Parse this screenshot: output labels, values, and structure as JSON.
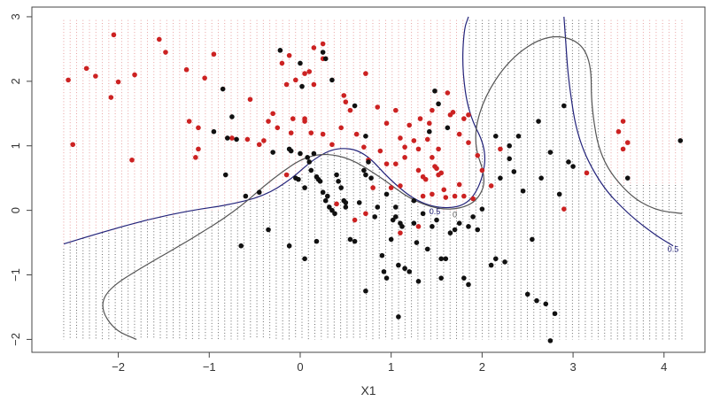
{
  "chart_data": {
    "type": "scatter",
    "title": "",
    "xlabel": "X1",
    "ylabel": "",
    "xlim": [
      -2.95,
      4.45
    ],
    "ylim": [
      -2.2,
      3.15
    ],
    "xticks": [
      "-2",
      "-1",
      "0",
      "1",
      "2",
      "3",
      "4"
    ],
    "yticks": [
      "-2",
      "-1",
      "0",
      "1",
      "2",
      "3"
    ],
    "grid": {
      "x_start": -2.6,
      "x_end": 4.2,
      "x_step": 0.0708,
      "y_min": -2.0,
      "y_max": 2.95,
      "colors": {
        "class_red": "#e8a0a0",
        "class_black": "#6a6a6a"
      }
    },
    "colors": {
      "red_class": "#cc2222",
      "black_class": "#111111",
      "boundary_blue": "#23237a",
      "boundary_gray": "#555555"
    },
    "contour_labels": [
      {
        "text": "0.5",
        "x": 1.48,
        "y": -0.02,
        "color": "#23237a"
      },
      {
        "text": "0",
        "x": 1.7,
        "y": -0.07,
        "color": "#555555"
      },
      {
        "text": "0.5",
        "x": 4.1,
        "y": -0.6,
        "color": "#23237a"
      }
    ],
    "series": [
      {
        "class": "red",
        "color": "#cc2222",
        "points": [
          [
            -2.55,
            2.02
          ],
          [
            -2.5,
            1.02
          ],
          [
            -2.35,
            2.2
          ],
          [
            -2.25,
            2.08
          ],
          [
            -2.05,
            2.72
          ],
          [
            -2.0,
            1.99
          ],
          [
            -2.08,
            1.75
          ],
          [
            -1.85,
            0.78
          ],
          [
            -1.82,
            2.1
          ],
          [
            -1.55,
            2.65
          ],
          [
            -1.48,
            2.45
          ],
          [
            -1.25,
            2.18
          ],
          [
            -1.22,
            1.38
          ],
          [
            -1.15,
            0.82
          ],
          [
            -1.12,
            1.28
          ],
          [
            -1.12,
            0.95
          ],
          [
            -1.05,
            2.05
          ],
          [
            -0.95,
            2.42
          ],
          [
            -0.75,
            1.12
          ],
          [
            -0.58,
            1.1
          ],
          [
            -0.55,
            1.72
          ],
          [
            -0.45,
            1.02
          ],
          [
            -0.4,
            1.08
          ],
          [
            -0.35,
            1.38
          ],
          [
            -0.3,
            1.5
          ],
          [
            -0.25,
            1.28
          ],
          [
            -0.2,
            2.28
          ],
          [
            -0.15,
            1.95
          ],
          [
            -0.12,
            2.4
          ],
          [
            -0.1,
            1.2
          ],
          [
            -0.08,
            1.42
          ],
          [
            -0.05,
            2.02
          ],
          [
            0.05,
            1.42
          ],
          [
            0.05,
            1.38
          ],
          [
            0.05,
            2.12
          ],
          [
            0.1,
            2.15
          ],
          [
            0.12,
            1.2
          ],
          [
            0.15,
            1.95
          ],
          [
            0.15,
            2.52
          ],
          [
            0.25,
            2.58
          ],
          [
            0.25,
            2.35
          ],
          [
            0.25,
            1.18
          ],
          [
            0.35,
            1.02
          ],
          [
            0.45,
            1.28
          ],
          [
            0.48,
            1.78
          ],
          [
            0.5,
            1.68
          ],
          [
            0.55,
            1.55
          ],
          [
            0.62,
            1.18
          ],
          [
            0.7,
            0.98
          ],
          [
            0.72,
            2.12
          ],
          [
            0.85,
            1.6
          ],
          [
            0.88,
            0.92
          ],
          [
            0.95,
            1.35
          ],
          [
            1.05,
            1.55
          ],
          [
            1.1,
            1.12
          ],
          [
            1.15,
            0.98
          ],
          [
            1.2,
            1.32
          ],
          [
            1.25,
            1.08
          ],
          [
            1.3,
            0.95
          ],
          [
            1.32,
            1.42
          ],
          [
            1.35,
            0.52
          ],
          [
            1.38,
            0.48
          ],
          [
            1.4,
            1.1
          ],
          [
            1.45,
            0.82
          ],
          [
            1.48,
            0.68
          ],
          [
            1.5,
            0.65
          ],
          [
            1.52,
            0.55
          ],
          [
            1.55,
            0.58
          ],
          [
            1.58,
            0.32
          ],
          [
            1.62,
            1.82
          ],
          [
            1.65,
            1.48
          ],
          [
            1.68,
            1.52
          ],
          [
            1.75,
            1.18
          ],
          [
            1.75,
            0.4
          ],
          [
            1.8,
            0.22
          ],
          [
            1.85,
            1.05
          ],
          [
            1.9,
            0.18
          ],
          [
            1.95,
            0.85
          ],
          [
            2.0,
            0.62
          ],
          [
            2.1,
            0.38
          ],
          [
            1.8,
            1.42
          ],
          [
            1.85,
            1.48
          ],
          [
            1.42,
            1.35
          ],
          [
            1.45,
            1.55
          ],
          [
            1.52,
            0.95
          ],
          [
            0.95,
            0.72
          ],
          [
            1.05,
            0.72
          ],
          [
            1.0,
            0.35
          ],
          [
            1.1,
            0.38
          ],
          [
            1.35,
            0.22
          ],
          [
            1.45,
            0.25
          ],
          [
            1.6,
            0.2
          ],
          [
            1.7,
            0.22
          ],
          [
            1.1,
            -0.35
          ],
          [
            1.3,
            -0.25
          ],
          [
            0.6,
            -0.15
          ],
          [
            0.4,
            0.1
          ],
          [
            0.75,
            0.78
          ],
          [
            2.2,
            0.95
          ],
          [
            2.9,
            0.02
          ],
          [
            3.15,
            0.58
          ],
          [
            3.5,
            1.22
          ],
          [
            3.55,
            1.38
          ],
          [
            3.55,
            0.95
          ],
          [
            3.6,
            1.05
          ],
          [
            -0.15,
            0.55
          ],
          [
            0.8,
            0.35
          ],
          [
            1.3,
            0.62
          ],
          [
            1.15,
            0.82
          ],
          [
            0.72,
            -0.05
          ]
        ]
      },
      {
        "class": "black",
        "color": "#111111",
        "points": [
          [
            -0.95,
            1.22
          ],
          [
            -0.85,
            1.88
          ],
          [
            -0.8,
            1.12
          ],
          [
            -0.75,
            1.45
          ],
          [
            -0.7,
            1.1
          ],
          [
            -0.6,
            0.22
          ],
          [
            -0.45,
            0.28
          ],
          [
            -0.35,
            -0.3
          ],
          [
            -0.3,
            0.9
          ],
          [
            -0.12,
            0.95
          ],
          [
            -0.1,
            0.92
          ],
          [
            -0.05,
            0.5
          ],
          [
            -0.02,
            0.48
          ],
          [
            0.0,
            0.88
          ],
          [
            0.05,
            0.35
          ],
          [
            0.08,
            0.82
          ],
          [
            0.1,
            0.75
          ],
          [
            0.12,
            0.62
          ],
          [
            0.15,
            0.88
          ],
          [
            0.18,
            0.52
          ],
          [
            0.2,
            0.48
          ],
          [
            0.22,
            0.45
          ],
          [
            0.25,
            0.28
          ],
          [
            0.28,
            0.15
          ],
          [
            0.3,
            0.22
          ],
          [
            0.32,
            0.05
          ],
          [
            0.35,
            0.0
          ],
          [
            0.38,
            -0.05
          ],
          [
            0.4,
            0.55
          ],
          [
            0.42,
            0.45
          ],
          [
            0.45,
            0.35
          ],
          [
            0.48,
            0.15
          ],
          [
            0.5,
            0.05
          ],
          [
            0.55,
            -0.45
          ],
          [
            0.6,
            -0.48
          ],
          [
            0.65,
            0.12
          ],
          [
            0.7,
            0.62
          ],
          [
            0.72,
            0.55
          ],
          [
            0.75,
            0.75
          ],
          [
            0.78,
            0.5
          ],
          [
            0.82,
            -0.1
          ],
          [
            0.85,
            0.05
          ],
          [
            0.9,
            -0.7
          ],
          [
            0.92,
            -0.95
          ],
          [
            0.95,
            -1.05
          ],
          [
            1.0,
            -0.45
          ],
          [
            1.02,
            -0.15
          ],
          [
            1.05,
            0.05
          ],
          [
            1.08,
            -0.85
          ],
          [
            1.1,
            -0.2
          ],
          [
            1.12,
            -0.25
          ],
          [
            1.15,
            -0.9
          ],
          [
            1.2,
            -0.95
          ],
          [
            1.25,
            -0.2
          ],
          [
            1.28,
            -0.5
          ],
          [
            1.3,
            -1.1
          ],
          [
            1.35,
            -0.05
          ],
          [
            1.4,
            -0.6
          ],
          [
            1.45,
            -0.25
          ],
          [
            1.5,
            -0.15
          ],
          [
            1.55,
            -0.75
          ],
          [
            1.6,
            -0.75
          ],
          [
            1.65,
            -0.35
          ],
          [
            1.7,
            -0.3
          ],
          [
            1.75,
            -0.2
          ],
          [
            1.8,
            -1.05
          ],
          [
            1.85,
            -1.15
          ],
          [
            1.9,
            -0.1
          ],
          [
            1.95,
            -0.3
          ],
          [
            2.0,
            0.02
          ],
          [
            2.1,
            -0.85
          ],
          [
            2.15,
            -0.75
          ],
          [
            2.2,
            0.5
          ],
          [
            2.25,
            -0.8
          ],
          [
            2.3,
            0.8
          ],
          [
            2.35,
            0.6
          ],
          [
            2.4,
            1.15
          ],
          [
            2.45,
            0.3
          ],
          [
            2.5,
            -1.3
          ],
          [
            2.55,
            -0.45
          ],
          [
            2.6,
            -1.4
          ],
          [
            2.62,
            1.38
          ],
          [
            2.65,
            0.5
          ],
          [
            2.7,
            -1.45
          ],
          [
            2.75,
            0.9
          ],
          [
            2.8,
            -1.6
          ],
          [
            2.85,
            0.25
          ],
          [
            2.9,
            1.62
          ],
          [
            2.95,
            0.75
          ],
          [
            3.0,
            0.68
          ],
          [
            3.6,
            0.5
          ],
          [
            4.18,
            1.08
          ],
          [
            -0.22,
            2.48
          ],
          [
            0.0,
            2.28
          ],
          [
            0.02,
            1.92
          ],
          [
            0.25,
            2.45
          ],
          [
            0.28,
            2.35
          ],
          [
            0.35,
            2.02
          ],
          [
            0.6,
            1.62
          ],
          [
            0.72,
            1.15
          ],
          [
            1.42,
            1.22
          ],
          [
            1.48,
            1.85
          ],
          [
            1.52,
            1.65
          ],
          [
            1.62,
            1.28
          ],
          [
            2.15,
            1.15
          ],
          [
            2.3,
            1.0
          ],
          [
            -0.82,
            0.55
          ],
          [
            -0.65,
            -0.55
          ],
          [
            -0.12,
            -0.55
          ],
          [
            0.05,
            -0.75
          ],
          [
            0.18,
            -0.48
          ],
          [
            0.72,
            -1.25
          ],
          [
            1.08,
            -1.65
          ],
          [
            2.75,
            -2.02
          ],
          [
            1.55,
            -1.05
          ],
          [
            1.85,
            -0.25
          ],
          [
            0.5,
            0.12
          ],
          [
            0.95,
            0.25
          ],
          [
            1.05,
            -0.1
          ],
          [
            1.25,
            0.15
          ]
        ]
      }
    ],
    "boundaries": [
      {
        "name": "",
        "color": "#23237a",
        "segments": [
          [
            [
              -2.6,
              -0.52
            ],
            [
              -2.2,
              -0.35
            ],
            [
              -1.7,
              -0.15
            ],
            [
              -1.2,
              0.0
            ],
            [
              -0.8,
              0.08
            ],
            [
              -0.4,
              0.22
            ],
            [
              -0.1,
              0.48
            ],
            [
              0.15,
              0.8
            ],
            [
              0.4,
              0.98
            ],
            [
              0.7,
              0.92
            ],
            [
              1.0,
              0.45
            ],
            [
              1.3,
              0.12
            ],
            [
              1.6,
              0.02
            ],
            [
              1.85,
              0.1
            ],
            [
              2.0,
              0.45
            ],
            [
              2.05,
              0.95
            ],
            [
              1.85,
              1.5
            ],
            [
              1.78,
              2.2
            ],
            [
              1.8,
              2.8
            ],
            [
              1.85,
              3.0
            ]
          ],
          [
            [
              2.9,
              3.0
            ],
            [
              2.92,
              2.6
            ],
            [
              2.95,
              2.0
            ],
            [
              3.05,
              1.1
            ],
            [
              3.3,
              0.4
            ],
            [
              3.6,
              -0.05
            ],
            [
              3.9,
              -0.38
            ],
            [
              4.1,
              -0.55
            ]
          ]
        ]
      },
      {
        "name": "",
        "color": "#555555",
        "segments": [
          [
            [
              -1.8,
              -2.0
            ],
            [
              -2.05,
              -1.85
            ],
            [
              -2.2,
              -1.5
            ],
            [
              -2.1,
              -1.2
            ],
            [
              -1.7,
              -0.85
            ],
            [
              -1.2,
              -0.45
            ],
            [
              -0.7,
              0.0
            ],
            [
              -0.3,
              0.5
            ],
            [
              0.1,
              0.88
            ],
            [
              0.5,
              0.85
            ],
            [
              0.9,
              0.5
            ],
            [
              1.2,
              0.18
            ],
            [
              1.5,
              0.02
            ],
            [
              1.75,
              0.02
            ],
            [
              1.95,
              0.15
            ],
            [
              2.05,
              0.48
            ],
            [
              1.9,
              1.05
            ],
            [
              2.0,
              1.7
            ],
            [
              2.3,
              2.35
            ],
            [
              2.7,
              2.72
            ],
            [
              3.05,
              2.65
            ],
            [
              3.2,
              2.3
            ],
            [
              3.2,
              1.6
            ],
            [
              3.3,
              0.8
            ],
            [
              3.6,
              0.25
            ],
            [
              3.9,
              0.0
            ],
            [
              4.2,
              -0.05
            ]
          ]
        ]
      }
    ]
  }
}
